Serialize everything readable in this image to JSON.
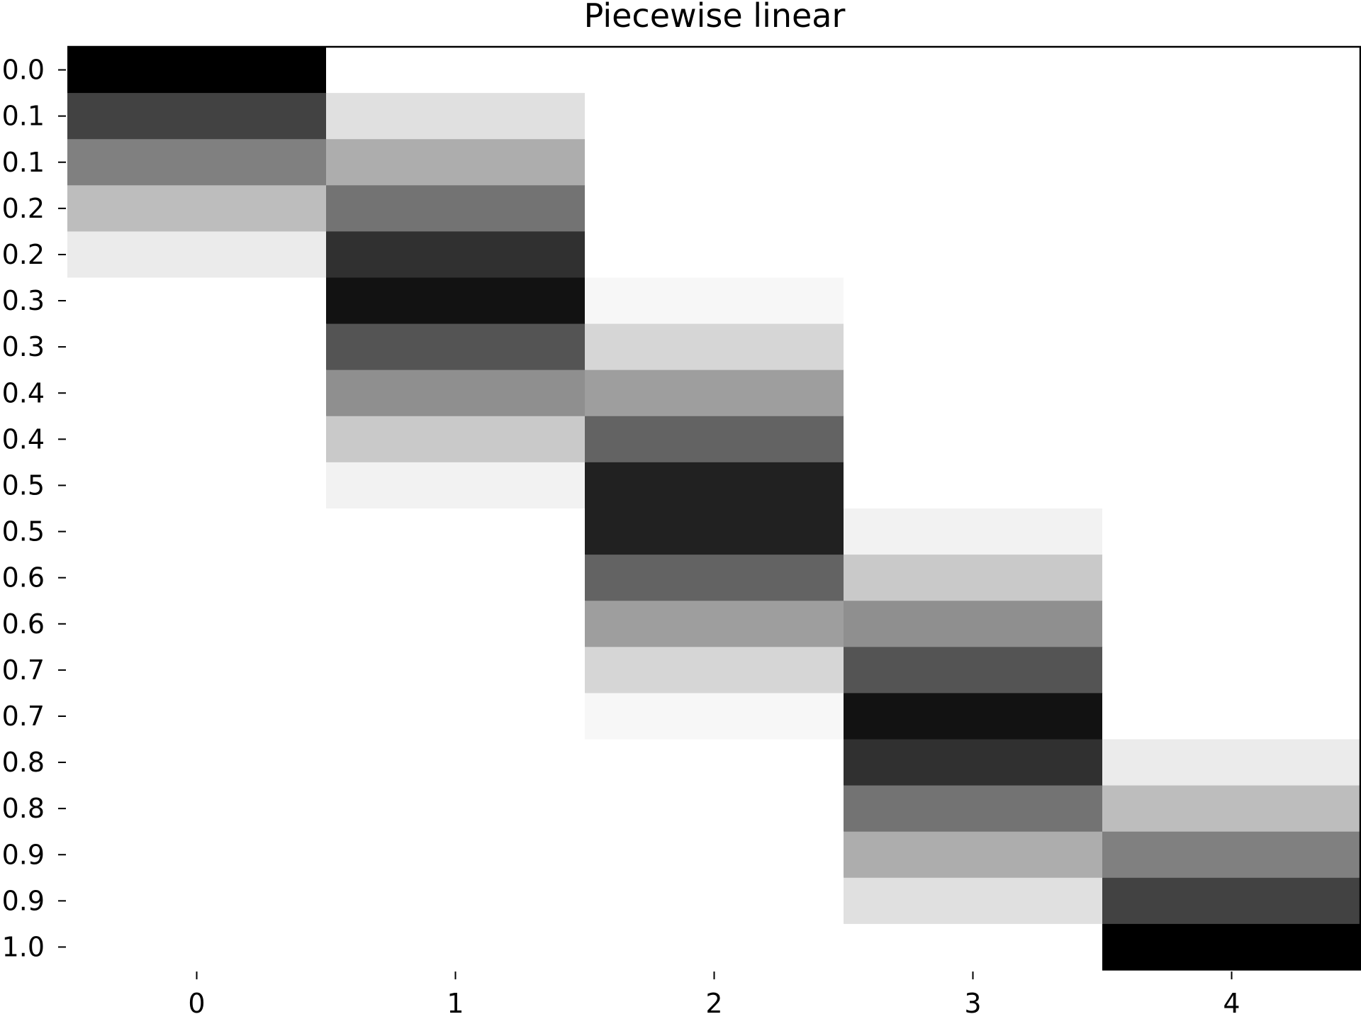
{
  "chart_data": {
    "type": "heatmap",
    "title": "Piecewise linear",
    "xlabel": "",
    "ylabel": "",
    "x_tick_labels": [
      "0",
      "1",
      "2",
      "3",
      "4"
    ],
    "y_tick_labels": [
      "0.0",
      "0.1",
      "0.1",
      "0.2",
      "0.2",
      "0.3",
      "0.3",
      "0.4",
      "0.4",
      "0.5",
      "0.5",
      "0.6",
      "0.6",
      "0.7",
      "0.7",
      "0.8",
      "0.8",
      "0.9",
      "0.9",
      "1.0"
    ],
    "colormap": "gray_r",
    "value_range": [
      0,
      1
    ],
    "grid": false,
    "matrix": [
      [
        1.0,
        0.0,
        0.0,
        0.0,
        0.0
      ],
      [
        0.74,
        0.12,
        0.0,
        0.0,
        0.0
      ],
      [
        0.5,
        0.32,
        0.0,
        0.0,
        0.0
      ],
      [
        0.26,
        0.55,
        0.0,
        0.0,
        0.0
      ],
      [
        0.08,
        0.81,
        0.0,
        0.0,
        0.0
      ],
      [
        0.0,
        0.93,
        0.03,
        0.0,
        0.0
      ],
      [
        0.0,
        0.67,
        0.16,
        0.0,
        0.0
      ],
      [
        0.0,
        0.44,
        0.38,
        0.0,
        0.0
      ],
      [
        0.0,
        0.21,
        0.61,
        0.0,
        0.0
      ],
      [
        0.0,
        0.05,
        0.87,
        0.0,
        0.0
      ],
      [
        0.0,
        0.0,
        0.87,
        0.05,
        0.0
      ],
      [
        0.0,
        0.0,
        0.61,
        0.21,
        0.0
      ],
      [
        0.0,
        0.0,
        0.38,
        0.44,
        0.0
      ],
      [
        0.0,
        0.0,
        0.16,
        0.67,
        0.0
      ],
      [
        0.0,
        0.0,
        0.03,
        0.93,
        0.0
      ],
      [
        0.0,
        0.0,
        0.0,
        0.81,
        0.08
      ],
      [
        0.0,
        0.0,
        0.0,
        0.55,
        0.26
      ],
      [
        0.0,
        0.0,
        0.0,
        0.32,
        0.5
      ],
      [
        0.0,
        0.0,
        0.0,
        0.12,
        0.74
      ],
      [
        0.0,
        0.0,
        0.0,
        0.0,
        1.0
      ]
    ]
  }
}
